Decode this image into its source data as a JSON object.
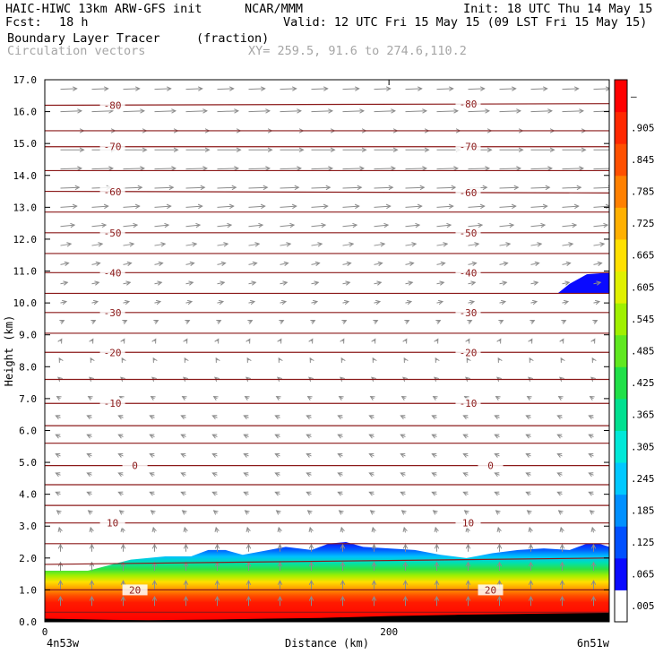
{
  "header": {
    "model": "HAIC-HIWC 13km ARW-GFS init",
    "org": "NCAR/MMM",
    "init": "Init: 18 UTC Thu 14 May 15",
    "fcst_label": "Fcst:",
    "fcst_value": "18 h",
    "valid": "Valid: 12 UTC Fri 15 May 15 (09 LST Fri 15 May 15)",
    "field": "Boundary Layer Tracer",
    "field_units": "(fraction)",
    "overlay": "Circulation vectors",
    "xy": "XY= 259.5, 91.6 to 274.6,110.2"
  },
  "colors": {
    "isotherm": "#8b1a1a",
    "vector": "#8c8c8c",
    "terrain": "#000000"
  },
  "chart_data": {
    "type": "heatmap",
    "title": "Boundary Layer Tracer (fraction)",
    "xlabel": "Distance (km)",
    "ylabel": "Height (km)",
    "xlim": [
      0,
      328
    ],
    "ylim": [
      0,
      17
    ],
    "x_ticks": [
      0,
      200
    ],
    "x_tick_labels": [
      "0",
      "200"
    ],
    "x_end_labels": [
      "4n53w",
      "6n51w"
    ],
    "y_ticks": [
      0,
      1,
      2,
      3,
      4,
      5,
      6,
      7,
      8,
      9,
      10,
      11,
      12,
      13,
      14,
      15,
      16,
      17
    ],
    "y_tick_labels": [
      "0.0",
      "1.0",
      "2.0",
      "3.0",
      "4.0",
      "5.0",
      "6.0",
      "7.0",
      "8.0",
      "9.0",
      "10.0",
      "11.0",
      "12.0",
      "13.0",
      "14.0",
      "15.0",
      "16.0",
      "17.0"
    ],
    "colorbar": {
      "labels": [
        ".005",
        ".065",
        ".125",
        ".185",
        ".245",
        ".305",
        ".365",
        ".425",
        ".485",
        ".545",
        ".605",
        ".665",
        ".725",
        ".785",
        ".845",
        ".905",
        "–"
      ],
      "colors": [
        "#ffffff",
        "#0a0aff",
        "#0050ff",
        "#0090ff",
        "#00c8ff",
        "#00e8d8",
        "#00e090",
        "#20e048",
        "#60e820",
        "#a0f000",
        "#e0f000",
        "#ffe000",
        "#ffb000",
        "#ff8000",
        "#ff5000",
        "#ff2800",
        "#ff0000"
      ]
    },
    "tracer_top_km": {
      "x": [
        0,
        10,
        25,
        50,
        70,
        85,
        95,
        105,
        115,
        125,
        140,
        155,
        165,
        175,
        185,
        200,
        215,
        230,
        245,
        260,
        275,
        290,
        305,
        315,
        322,
        328
      ],
      "y": [
        1.6,
        1.6,
        1.6,
        1.95,
        2.05,
        2.05,
        2.25,
        2.25,
        2.1,
        2.2,
        2.35,
        2.25,
        2.45,
        2.5,
        2.35,
        2.3,
        2.25,
        2.1,
        2.0,
        2.15,
        2.25,
        2.3,
        2.25,
        2.45,
        2.45,
        2.35
      ]
    },
    "upper_feature": {
      "x": [
        298,
        305,
        315,
        328,
        328
      ],
      "top": [
        10.3,
        10.6,
        10.9,
        10.95,
        10.3
      ],
      "bottom": [
        10.3,
        10.3,
        10.3,
        10.3,
        10.3
      ]
    },
    "terrain_km": {
      "x": [
        0,
        20,
        40,
        60,
        80,
        100,
        130,
        160,
        200,
        240,
        280,
        328
      ],
      "y": [
        0.1,
        0.08,
        0.06,
        0.05,
        0.06,
        0.07,
        0.1,
        0.12,
        0.18,
        0.22,
        0.25,
        0.28
      ]
    },
    "isotherms_C": [
      {
        "label": "-80",
        "y": [
          16.2,
          16.25
        ]
      },
      {
        "label": "",
        "y": [
          15.4,
          15.4
        ]
      },
      {
        "label": "-70",
        "y": [
          14.9,
          14.9
        ]
      },
      {
        "label": "",
        "y": [
          14.15,
          14.15
        ]
      },
      {
        "label": "-60",
        "y": [
          13.5,
          13.45
        ]
      },
      {
        "label": "",
        "y": [
          12.85,
          12.85
        ]
      },
      {
        "label": "-50",
        "y": [
          12.2,
          12.2
        ]
      },
      {
        "label": "",
        "y": [
          11.55,
          11.55
        ]
      },
      {
        "label": "-40",
        "y": [
          10.95,
          10.95
        ]
      },
      {
        "label": "",
        "y": [
          10.3,
          10.3
        ]
      },
      {
        "label": "-30",
        "y": [
          9.7,
          9.7
        ]
      },
      {
        "label": "",
        "y": [
          9.05,
          9.05
        ]
      },
      {
        "label": "-20",
        "y": [
          8.45,
          8.45
        ]
      },
      {
        "label": "",
        "y": [
          7.6,
          7.6
        ]
      },
      {
        "label": "-10",
        "y": [
          6.85,
          6.85
        ]
      },
      {
        "label": "",
        "y": [
          6.15,
          6.15
        ]
      },
      {
        "label": "",
        "y": [
          5.6,
          5.6
        ]
      },
      {
        "label": "0",
        "y": [
          4.9,
          4.9
        ]
      },
      {
        "label": "",
        "y": [
          4.3,
          4.3
        ]
      },
      {
        "label": "",
        "y": [
          3.65,
          3.65
        ]
      },
      {
        "label": "10",
        "y": [
          3.1,
          3.1
        ]
      },
      {
        "label": "",
        "y": [
          2.45,
          2.45
        ]
      },
      {
        "label": "",
        "y": [
          1.8,
          2.0
        ]
      },
      {
        "label": "20",
        "y": [
          1.0,
          1.0
        ]
      },
      {
        "label": "",
        "y": [
          0.3,
          0.3
        ]
      }
    ],
    "wind_vectors": {
      "levels_km": [
        16.7,
        16.0,
        15.4,
        14.8,
        14.2,
        13.6,
        13.0,
        12.4,
        11.8,
        11.2,
        10.6,
        10.0,
        9.4,
        8.8,
        8.2,
        7.6,
        7.0,
        6.4,
        5.8,
        5.2,
        4.6,
        4.0,
        3.4,
        2.8,
        2.2,
        1.6,
        1.0,
        0.5
      ],
      "u_scale": [
        0.7,
        0.9,
        1.0,
        1.0,
        0.9,
        0.8,
        0.7,
        0.6,
        0.45,
        0.35,
        0.3,
        0.25,
        0.15,
        0.05,
        -0.05,
        -0.1,
        -0.15,
        -0.2,
        -0.2,
        -0.2,
        -0.2,
        -0.2,
        -0.15,
        -0.05,
        0.0,
        0.0,
        0.0,
        0.0
      ],
      "w_scale": [
        0.05,
        0.05,
        0.0,
        0.0,
        0.05,
        0.05,
        0.08,
        0.1,
        0.12,
        0.12,
        0.1,
        0.1,
        0.12,
        0.15,
        0.15,
        0.15,
        0.15,
        0.15,
        0.15,
        0.15,
        0.15,
        0.15,
        0.2,
        0.35,
        0.5,
        0.6,
        0.65,
        0.65
      ]
    }
  }
}
